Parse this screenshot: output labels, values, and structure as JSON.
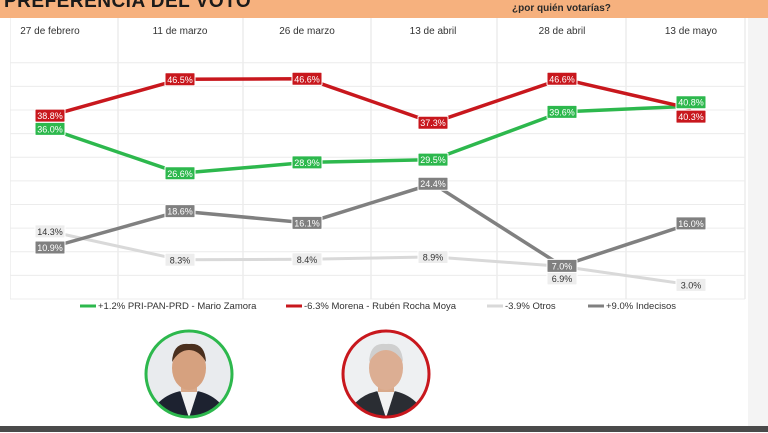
{
  "header": {
    "title": "PREFERENCIA DEL VOTO",
    "question": "¿por quién votarías?"
  },
  "chart_data": {
    "type": "line",
    "categories": [
      "27 de febrero",
      "11 de marzo",
      "26 de marzo",
      "13 de abril",
      "28 de abril",
      "13 de mayo"
    ],
    "series": [
      {
        "name": "+1.2% PRI-PAN-PRD - Mario Zamora",
        "color": "#2db84d",
        "values": [
          36.0,
          26.6,
          28.9,
          29.5,
          39.6,
          40.8
        ],
        "labels": [
          "36.0%",
          "26.6%",
          "28.9%",
          "29.5%",
          "39.6%",
          "40.8%"
        ]
      },
      {
        "name": "-6.3% Morena - Rubén Rocha Moya",
        "color": "#c8171d",
        "values": [
          38.8,
          46.5,
          46.6,
          37.3,
          46.6,
          40.3
        ],
        "labels": [
          "38.8%",
          "46.5%",
          "46.6%",
          "37.3%",
          "46.6%",
          "40.3%"
        ]
      },
      {
        "name": "-3.9% Otros",
        "color": "#d9d9d9",
        "values": [
          14.3,
          8.3,
          8.4,
          8.9,
          6.9,
          3.0
        ],
        "labels": [
          "14.3%",
          "8.3%",
          "8.4%",
          "8.9%",
          "6.9%",
          "3.0%"
        ]
      },
      {
        "name": "+9.0% Indecisos",
        "color": "#808080",
        "values": [
          10.9,
          18.6,
          16.1,
          24.4,
          7.0,
          16.0
        ],
        "labels": [
          "10.9%",
          "18.6%",
          "16.1%",
          "24.4%",
          "7.0%",
          "16.0%"
        ]
      }
    ],
    "ylim": [
      0,
      51
    ],
    "grid": true,
    "legend": "bottom"
  },
  "candidates": [
    {
      "name": "Mario Zamora",
      "ring_color": "#2db84d"
    },
    {
      "name": "Rubén Rocha Moya",
      "ring_color": "#c8171d"
    }
  ]
}
